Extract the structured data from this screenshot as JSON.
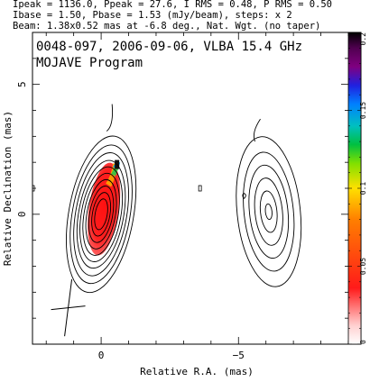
{
  "header_lines": [
    "Ipeak = 1136.0, Ppeak = 27.6, I RMS = 0.48, P RMS = 0.50",
    "Ibase = 1.50, Pbase = 1.53 (mJy/beam), steps: x 2",
    "Beam: 1.38x0.52 mas at -6.8 deg., Nat. Wgt. (no taper)"
  ],
  "chart_data": {
    "type": "heatmap",
    "annotations": [
      "0048-097, 2006-09-06, VLBA 15.4 GHz",
      "MOJAVE Program"
    ],
    "xlabel": "Relative R.A. (mas)",
    "ylabel": "Relative Declination (mas)",
    "xlim": [
      2.5,
      -9.0
    ],
    "ylim": [
      -5.0,
      7.0
    ],
    "xticks": [
      {
        "value": 0,
        "label": "0"
      },
      {
        "value": -5,
        "label": "−5"
      }
    ],
    "yticks": [
      {
        "value": 0,
        "label": "0"
      },
      {
        "value": 5,
        "label": "5"
      }
    ],
    "colorbar": {
      "range": [
        0,
        0.2
      ],
      "ticks": [
        {
          "value": 0,
          "label": "0"
        },
        {
          "value": 0.05,
          "label": "0.05"
        },
        {
          "value": 0.1,
          "label": "0.1"
        },
        {
          "value": 0.15,
          "label": "0.15"
        },
        {
          "value": 0.2,
          "label": "0.2"
        }
      ]
    },
    "beam": {
      "major": 1.38,
      "minor": 0.52,
      "pa_deg": -6.8
    },
    "core_contours": {
      "cx": 0.0,
      "cy": 0.0,
      "a": [
        0.22,
        0.32,
        0.42,
        0.52,
        0.62,
        0.72,
        0.82,
        0.93,
        1.05,
        1.18
      ],
      "b": [
        0.6,
        0.85,
        1.1,
        1.35,
        1.6,
        1.85,
        2.1,
        2.4,
        2.7,
        3.05
      ]
    },
    "jet_contours": {
      "cx": -6.1,
      "cy": 0.1,
      "a": [
        0.12,
        0.3,
        0.5,
        0.7,
        0.9,
        1.15
      ],
      "b": [
        0.3,
        0.8,
        1.3,
        1.8,
        2.3,
        2.9
      ]
    },
    "polarization_region": {
      "cx": -0.1,
      "cy": 0.2,
      "a": 0.55,
      "b": 1.8
    }
  }
}
